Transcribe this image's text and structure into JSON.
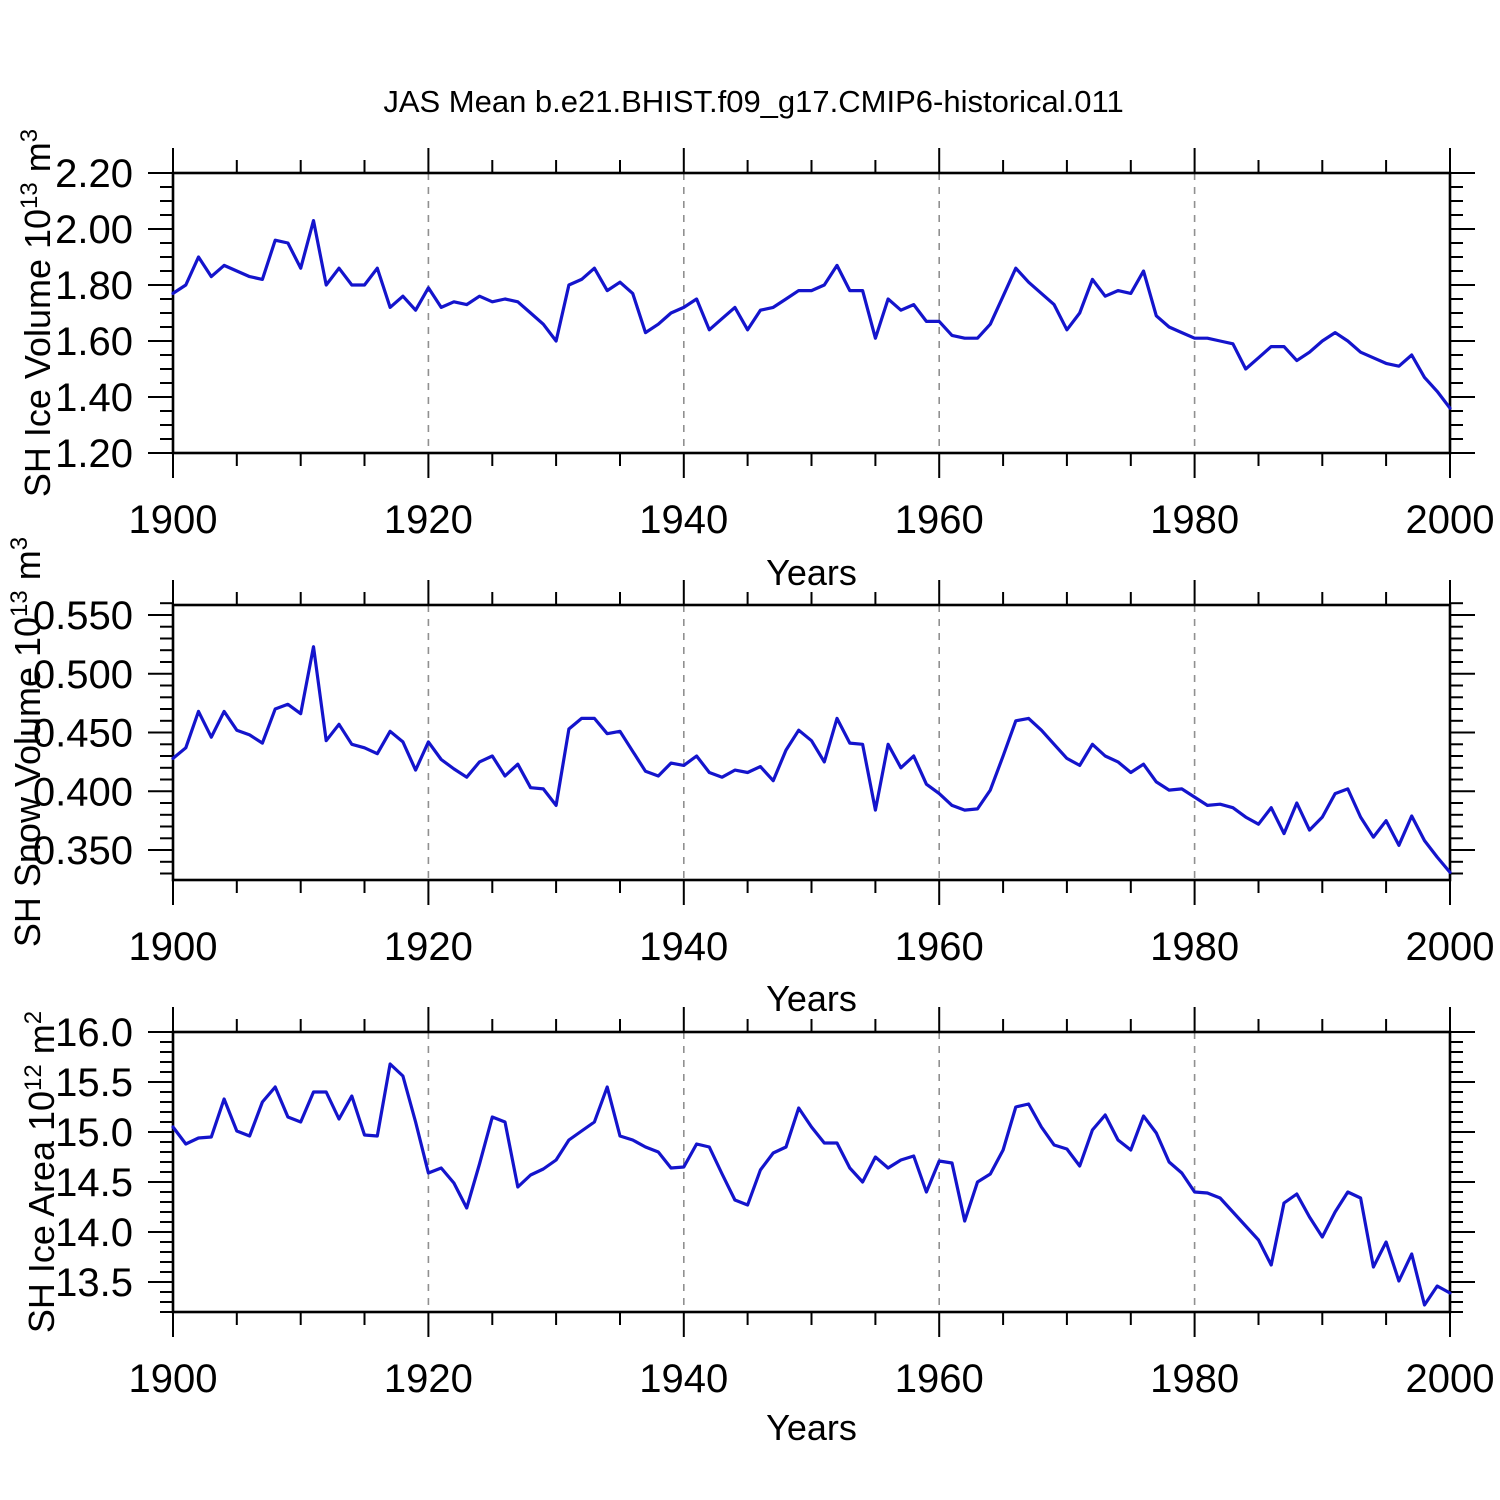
{
  "chart_data": {
    "type": "line",
    "title": "JAS Mean b.e21.BHIST.f09_g17.CMIP6-historical.011",
    "xlabel": "Years",
    "line_color": "#1414cc",
    "grid_color": "#909090",
    "x": {
      "min": 1900,
      "max": 2000,
      "major_step": 20,
      "minor_step": 5,
      "gridlines": [
        1920,
        1940,
        1960,
        1980
      ],
      "tick_labels": [
        "1900",
        "1920",
        "1940",
        "1960",
        "1980",
        "2000"
      ]
    },
    "panels": [
      {
        "id": "ice-volume",
        "ylabel": {
          "pre": "SH Ice Volume 10",
          "exp": "13",
          "mid": " m",
          "exp2": "3"
        },
        "ylim": [
          1.2,
          2.2
        ],
        "ytick_start": 1.2,
        "ytick_step": 0.2,
        "ytick_decimals": 2,
        "yminor_step": 0.05,
        "ytick_labels": [
          "1.20",
          "1.40",
          "1.60",
          "1.80",
          "2.00",
          "2.20"
        ],
        "x_start": 1900,
        "x_step": 1,
        "values": [
          1.77,
          1.8,
          1.9,
          1.83,
          1.87,
          1.85,
          1.83,
          1.82,
          1.96,
          1.95,
          1.86,
          2.03,
          1.8,
          1.86,
          1.8,
          1.8,
          1.86,
          1.72,
          1.76,
          1.71,
          1.79,
          1.72,
          1.74,
          1.73,
          1.76,
          1.74,
          1.75,
          1.74,
          1.7,
          1.66,
          1.6,
          1.8,
          1.82,
          1.86,
          1.78,
          1.81,
          1.77,
          1.63,
          1.66,
          1.7,
          1.72,
          1.75,
          1.64,
          1.68,
          1.72,
          1.64,
          1.71,
          1.72,
          1.75,
          1.78,
          1.78,
          1.8,
          1.87,
          1.78,
          1.78,
          1.61,
          1.75,
          1.71,
          1.73,
          1.67,
          1.67,
          1.62,
          1.61,
          1.61,
          1.66,
          1.76,
          1.86,
          1.81,
          1.77,
          1.73,
          1.64,
          1.7,
          1.82,
          1.76,
          1.78,
          1.77,
          1.85,
          1.69,
          1.65,
          1.63,
          1.61,
          1.61,
          1.6,
          1.59,
          1.5,
          1.54,
          1.58,
          1.58,
          1.53,
          1.56,
          1.6,
          1.63,
          1.6,
          1.56,
          1.54,
          1.52,
          1.51,
          1.55,
          1.47,
          1.42,
          1.36
        ]
      },
      {
        "id": "snow-volume",
        "ylabel": {
          "pre": "SH Snow Volume 10",
          "exp": "13",
          "mid": " m",
          "exp2": "3"
        },
        "ylim": [
          0.3245,
          0.5585
        ],
        "ytick_start": 0.35,
        "ytick_step": 0.05,
        "ytick_decimals": 3,
        "yminor_step": 0.01,
        "ytick_labels": [
          "0.350",
          "0.400",
          "0.450",
          "0.500",
          "0.550"
        ],
        "x_start": 1900,
        "x_step": 1,
        "values": [
          0.428,
          0.437,
          0.468,
          0.446,
          0.468,
          0.452,
          0.448,
          0.441,
          0.47,
          0.474,
          0.466,
          0.523,
          0.443,
          0.457,
          0.44,
          0.437,
          0.432,
          0.451,
          0.442,
          0.418,
          0.442,
          0.427,
          0.419,
          0.412,
          0.425,
          0.43,
          0.413,
          0.423,
          0.403,
          0.402,
          0.388,
          0.453,
          0.462,
          0.462,
          0.449,
          0.451,
          0.434,
          0.417,
          0.413,
          0.424,
          0.422,
          0.43,
          0.416,
          0.412,
          0.418,
          0.416,
          0.421,
          0.409,
          0.435,
          0.452,
          0.443,
          0.425,
          0.462,
          0.441,
          0.44,
          0.384,
          0.44,
          0.42,
          0.43,
          0.406,
          0.398,
          0.388,
          0.384,
          0.385,
          0.401,
          0.43,
          0.46,
          0.462,
          0.452,
          0.44,
          0.428,
          0.422,
          0.44,
          0.43,
          0.425,
          0.416,
          0.423,
          0.408,
          0.401,
          0.402,
          0.395,
          0.388,
          0.389,
          0.386,
          0.378,
          0.372,
          0.386,
          0.364,
          0.39,
          0.367,
          0.378,
          0.398,
          0.402,
          0.378,
          0.361,
          0.375,
          0.354,
          0.379,
          0.358,
          0.344,
          0.331
        ]
      },
      {
        "id": "ice-area",
        "ylabel": {
          "pre": "SH Ice Area 10",
          "exp": "12",
          "mid": " m",
          "exp2": "2"
        },
        "ylim": [
          13.2,
          16.0
        ],
        "ytick_start": 13.5,
        "ytick_step": 0.5,
        "ytick_decimals": 1,
        "yminor_step": 0.1,
        "ytick_labels": [
          "13.5",
          "14.0",
          "14.5",
          "15.0",
          "15.5",
          "16.0"
        ],
        "x_start": 1900,
        "x_step": 1,
        "values": [
          15.05,
          14.88,
          14.94,
          14.95,
          15.33,
          15.01,
          14.96,
          15.3,
          15.45,
          15.15,
          15.1,
          15.4,
          15.4,
          15.13,
          15.36,
          14.97,
          14.96,
          15.68,
          15.56,
          15.1,
          14.59,
          14.64,
          14.49,
          14.24,
          14.68,
          15.15,
          15.1,
          14.45,
          14.57,
          14.63,
          14.72,
          14.92,
          15.01,
          15.1,
          15.45,
          14.96,
          14.92,
          14.85,
          14.8,
          14.64,
          14.65,
          14.88,
          14.85,
          14.58,
          14.32,
          14.27,
          14.62,
          14.79,
          14.85,
          15.24,
          15.05,
          14.89,
          14.89,
          14.64,
          14.5,
          14.75,
          14.64,
          14.72,
          14.76,
          14.4,
          14.71,
          14.69,
          14.11,
          14.5,
          14.58,
          14.82,
          15.25,
          15.28,
          15.05,
          14.87,
          14.83,
          14.66,
          15.02,
          15.17,
          14.92,
          14.82,
          15.16,
          14.99,
          14.7,
          14.59,
          14.4,
          14.39,
          14.34,
          14.2,
          14.06,
          13.92,
          13.67,
          14.29,
          14.38,
          14.15,
          13.95,
          14.2,
          14.4,
          14.34,
          13.65,
          13.9,
          13.51,
          13.78,
          13.27,
          13.46,
          13.39
        ]
      }
    ]
  }
}
